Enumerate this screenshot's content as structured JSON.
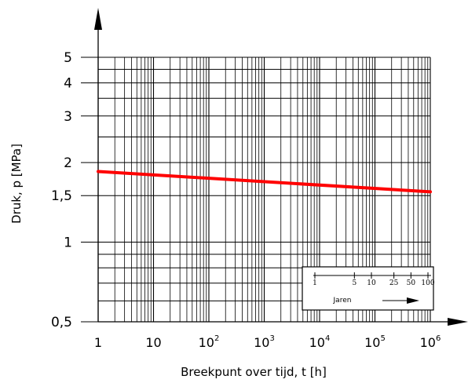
{
  "chart_data": {
    "type": "line",
    "xlabel": "Breekpunt over tijd, t [h]",
    "ylabel": "Druk, p [MPa]",
    "x_scale": "log",
    "y_scale": "log",
    "xlim": [
      1,
      1000000
    ],
    "ylim": [
      0.5,
      5
    ],
    "grid": true,
    "x_ticks": [
      {
        "value": 1,
        "base": "1",
        "exp": ""
      },
      {
        "value": 10,
        "base": "10",
        "exp": ""
      },
      {
        "value": 100,
        "base": "10",
        "exp": "2"
      },
      {
        "value": 1000,
        "base": "10",
        "exp": "3"
      },
      {
        "value": 10000,
        "base": "10",
        "exp": "4"
      },
      {
        "value": 100000,
        "base": "10",
        "exp": "5"
      },
      {
        "value": 1000000,
        "base": "10",
        "exp": "6"
      }
    ],
    "y_ticks": [
      {
        "value": 0.5,
        "label": "0,5"
      },
      {
        "value": 1,
        "label": "1"
      },
      {
        "value": 1.5,
        "label": "1,5"
      },
      {
        "value": 2,
        "label": "2"
      },
      {
        "value": 3,
        "label": "3"
      },
      {
        "value": 4,
        "label": "4"
      },
      {
        "value": 5,
        "label": "5"
      }
    ],
    "series": [
      {
        "color": "#ff0000",
        "x": [
          1,
          1000000
        ],
        "y": [
          1.85,
          1.55
        ]
      }
    ],
    "inset_scale": {
      "label": "Jaren",
      "ticks": [
        {
          "value": 1,
          "label": "1"
        },
        {
          "value": 5,
          "label": "5"
        },
        {
          "value": 10,
          "label": "10"
        },
        {
          "value": 25,
          "label": "25"
        },
        {
          "value": 50,
          "label": "50"
        },
        {
          "value": 100,
          "label": "100"
        }
      ]
    }
  }
}
